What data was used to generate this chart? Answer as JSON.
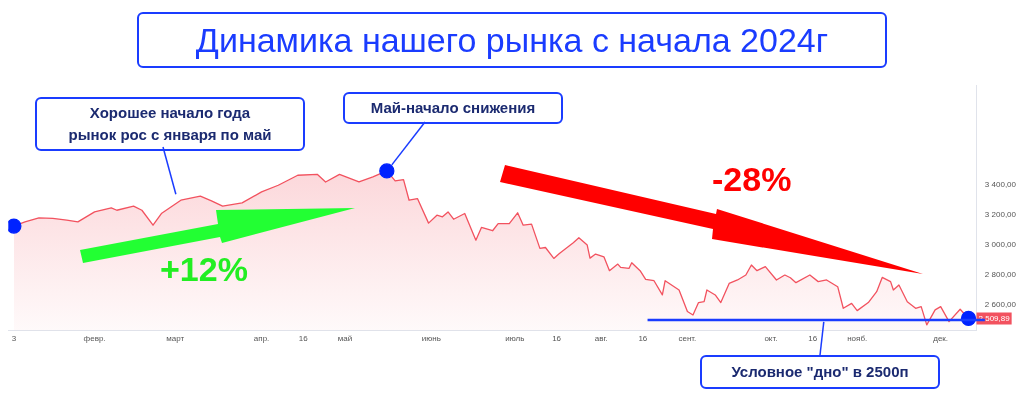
{
  "chart_data": {
    "type": "area",
    "title": "Динамика нашего рынка с начала 2024г",
    "xlim": [
      "2024-01-01",
      "2024-12-14"
    ],
    "xticks": [
      {
        "value": "2024-01-03",
        "label": "3"
      },
      {
        "value": "2024-02-01",
        "label": "февр."
      },
      {
        "value": "2024-03-01",
        "label": "март"
      },
      {
        "value": "2024-04-01",
        "label": "апр."
      },
      {
        "value": "2024-04-16",
        "label": "16"
      },
      {
        "value": "2024-05-01",
        "label": "май"
      },
      {
        "value": "2024-06-01",
        "label": "июнь"
      },
      {
        "value": "2024-07-01",
        "label": "июль"
      },
      {
        "value": "2024-07-16",
        "label": "16"
      },
      {
        "value": "2024-08-01",
        "label": "авг."
      },
      {
        "value": "2024-08-16",
        "label": "16"
      },
      {
        "value": "2024-09-01",
        "label": "сент."
      },
      {
        "value": "2024-10-01",
        "label": "окт."
      },
      {
        "value": "2024-10-16",
        "label": "16"
      },
      {
        "value": "2024-11-01",
        "label": "нояб."
      },
      {
        "value": "2024-12-01",
        "label": "дек."
      }
    ],
    "ylim": [
      2430,
      4070
    ],
    "yticks": [
      {
        "value": 2600,
        "label": "2 600,00"
      },
      {
        "value": 2800,
        "label": "2 800,00"
      },
      {
        "value": 3000,
        "label": "3 000,00"
      },
      {
        "value": 3200,
        "label": "3 200,00"
      },
      {
        "value": 3400,
        "label": "3 400,00"
      }
    ],
    "grid": false,
    "legend": false,
    "series": [
      {
        "type": "area",
        "color": "#f2525f",
        "marker": "none",
        "x": [
          "2024-01-03",
          "2024-01-07",
          "2024-01-12",
          "2024-01-17",
          "2024-01-22",
          "2024-01-26",
          "2024-02-01",
          "2024-02-07",
          "2024-02-09",
          "2024-02-15",
          "2024-02-18",
          "2024-02-22",
          "2024-02-25",
          "2024-03-03",
          "2024-03-10",
          "2024-03-14",
          "2024-03-18",
          "2024-03-25",
          "2024-04-01",
          "2024-04-07",
          "2024-04-14",
          "2024-04-21",
          "2024-04-24",
          "2024-04-29",
          "2024-05-06",
          "2024-05-11",
          "2024-05-16",
          "2024-05-19",
          "2024-05-22",
          "2024-05-24",
          "2024-05-27",
          "2024-05-31",
          "2024-06-03",
          "2024-06-05",
          "2024-06-07",
          "2024-06-09",
          "2024-06-13",
          "2024-06-17",
          "2024-06-19",
          "2024-06-23",
          "2024-06-25",
          "2024-06-29",
          "2024-07-02",
          "2024-07-04",
          "2024-07-07",
          "2024-07-10",
          "2024-07-12",
          "2024-07-15",
          "2024-07-17",
          "2024-07-22",
          "2024-07-24",
          "2024-07-27",
          "2024-07-28",
          "2024-07-30",
          "2024-08-02",
          "2024-08-04",
          "2024-08-07",
          "2024-08-08",
          "2024-08-11",
          "2024-08-12",
          "2024-08-15",
          "2024-08-17",
          "2024-08-20",
          "2024-08-23",
          "2024-08-24",
          "2024-08-29",
          "2024-09-01",
          "2024-09-03",
          "2024-09-05",
          "2024-09-07",
          "2024-09-08",
          "2024-09-11",
          "2024-09-13",
          "2024-09-16",
          "2024-09-19",
          "2024-09-22",
          "2024-09-24",
          "2024-09-26",
          "2024-09-29",
          "2024-10-03",
          "2024-10-06",
          "2024-10-08",
          "2024-10-10",
          "2024-10-15",
          "2024-10-18",
          "2024-10-21",
          "2024-10-25",
          "2024-10-27",
          "2024-10-30",
          "2024-11-01",
          "2024-11-05",
          "2024-11-08",
          "2024-11-10",
          "2024-11-13",
          "2024-11-14",
          "2024-11-16",
          "2024-11-19",
          "2024-11-22",
          "2024-11-24",
          "2024-11-26",
          "2024-11-29",
          "2024-12-01",
          "2024-12-04",
          "2024-12-08",
          "2024-12-11"
        ],
        "values": [
          3127,
          3155,
          3182,
          3178,
          3167,
          3155,
          3222,
          3249,
          3233,
          3260,
          3233,
          3133,
          3211,
          3300,
          3327,
          3296,
          3260,
          3282,
          3356,
          3400,
          3467,
          3473,
          3422,
          3473,
          3422,
          3456,
          3496,
          3429,
          3438,
          3300,
          3311,
          3147,
          3200,
          3189,
          3222,
          3173,
          3211,
          3033,
          3118,
          3096,
          3144,
          3144,
          3216,
          3133,
          3140,
          2978,
          2984,
          2911,
          2944,
          3016,
          3049,
          3000,
          2913,
          2940,
          2922,
          2829,
          2873,
          2851,
          2844,
          2882,
          2829,
          2771,
          2762,
          2667,
          2762,
          2700,
          2556,
          2533,
          2616,
          2622,
          2700,
          2667,
          2616,
          2744,
          2767,
          2800,
          2867,
          2829,
          2856,
          2767,
          2800,
          2782,
          2749,
          2800,
          2756,
          2767,
          2722,
          2578,
          2611,
          2562,
          2616,
          2689,
          2784,
          2756,
          2700,
          2733,
          2622,
          2578,
          2589,
          2467,
          2567,
          2589,
          2489,
          2571,
          2509.89
        ],
        "value_labels": [
          null,
          null,
          null,
          null,
          null,
          null,
          null,
          null,
          null,
          null,
          null,
          null,
          null,
          null,
          null,
          null,
          null,
          null,
          null,
          null,
          null,
          null,
          null,
          null,
          null,
          null,
          null,
          null,
          null,
          null,
          null,
          null,
          null,
          null,
          null,
          null,
          null,
          null,
          null,
          null,
          null,
          null,
          null,
          null,
          null,
          null,
          null,
          null,
          null,
          null,
          null,
          null,
          null,
          null,
          null,
          null,
          null,
          null,
          null,
          null,
          null,
          null,
          null,
          null,
          null,
          null,
          null,
          null,
          null,
          null,
          null,
          null,
          null,
          null,
          null,
          null,
          null,
          null,
          null,
          null,
          null,
          null,
          null,
          null,
          null,
          null,
          null,
          null,
          null,
          null,
          null,
          null,
          null,
          null,
          null,
          null,
          null,
          null,
          null,
          null,
          null,
          null,
          null,
          null,
          "2 509,89"
        ]
      },
      {
        "type": "scatter",
        "color": "#0022ff",
        "marker": "circle",
        "x": [
          "2024-01-03",
          "2024-05-16",
          "2024-12-11"
        ],
        "values": [
          3127,
          3496,
          2510
        ]
      }
    ],
    "ref_lines": [
      {
        "axis": "y",
        "value": 2500,
        "color": "#1a3cff"
      }
    ],
    "annotations": [
      {
        "text": "Хорошее начало года\nрынок рос с января по май",
        "x": "2024-03-03",
        "y": 3300
      },
      {
        "text": "Май-начало снижения",
        "x": "2024-05-16",
        "y": 3496
      },
      "+12%",
      "-28%",
      {
        "text": "Условное \"дно\" в 2500п",
        "x": "2024-10-20",
        "y": 2500
      }
    ]
  }
}
